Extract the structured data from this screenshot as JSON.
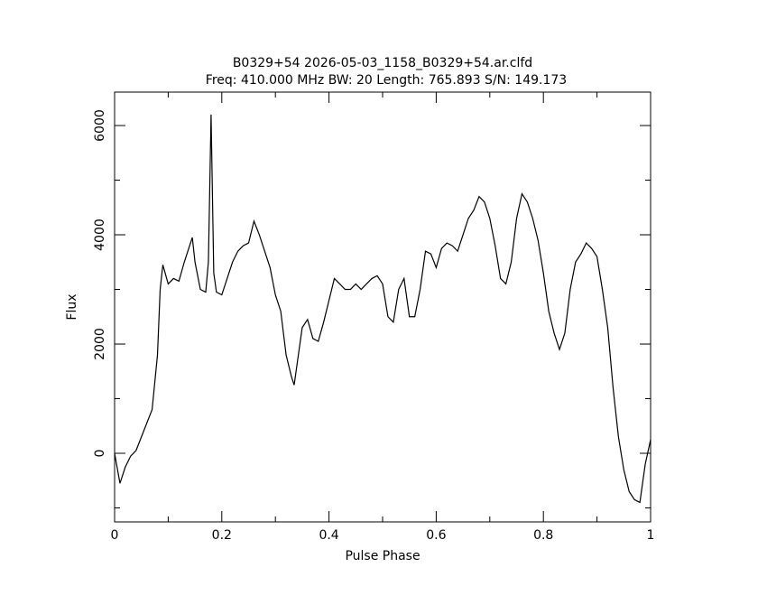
{
  "chart_data": {
    "type": "line",
    "title": "B0329+54 2026-05-03_1158_B0329+54.ar.clfd",
    "subtitle": "Freq: 410.000 MHz BW: 20 Length: 765.893 S/N: 149.173",
    "x_label": "Pulse Phase",
    "y_label": "Flux",
    "x": [
      0,
      0.01,
      0.02,
      0.03,
      0.04,
      0.05,
      0.06,
      0.07,
      0.08,
      0.085,
      0.09,
      0.1,
      0.11,
      0.12,
      0.13,
      0.14,
      0.145,
      0.15,
      0.16,
      0.17,
      0.175,
      0.18,
      0.185,
      0.19,
      0.2,
      0.21,
      0.22,
      0.23,
      0.24,
      0.25,
      0.26,
      0.27,
      0.28,
      0.29,
      0.3,
      0.31,
      0.32,
      0.33,
      0.335,
      0.34,
      0.35,
      0.36,
      0.37,
      0.38,
      0.39,
      0.4,
      0.41,
      0.42,
      0.43,
      0.44,
      0.45,
      0.46,
      0.47,
      0.48,
      0.49,
      0.5,
      0.51,
      0.52,
      0.53,
      0.54,
      0.55,
      0.56,
      0.57,
      0.58,
      0.59,
      0.6,
      0.61,
      0.62,
      0.63,
      0.64,
      0.65,
      0.66,
      0.67,
      0.68,
      0.69,
      0.7,
      0.71,
      0.72,
      0.73,
      0.74,
      0.75,
      0.76,
      0.77,
      0.78,
      0.79,
      0.8,
      0.81,
      0.82,
      0.83,
      0.84,
      0.85,
      0.86,
      0.87,
      0.88,
      0.89,
      0.9,
      0.91,
      0.92,
      0.93,
      0.94,
      0.95,
      0.96,
      0.97,
      0.98,
      0.99,
      1
    ],
    "series": [
      {
        "name": "Flux",
        "color": "#000000",
        "values": [
          0,
          -550,
          -250,
          -50,
          50,
          300,
          550,
          800,
          1800,
          3000,
          3450,
          3100,
          3200,
          3150,
          3500,
          3800,
          3950,
          3500,
          3000,
          2950,
          3500,
          6200,
          3300,
          2950,
          2900,
          3200,
          3500,
          3700,
          3800,
          3850,
          4250,
          4000,
          3700,
          3400,
          2900,
          2600,
          1800,
          1400,
          1250,
          1600,
          2300,
          2450,
          2100,
          2050,
          2400,
          2800,
          3200,
          3100,
          3000,
          3000,
          3100,
          3000,
          3100,
          3200,
          3250,
          3100,
          2500,
          2400,
          3000,
          3200,
          2500,
          2500,
          3000,
          3700,
          3650,
          3400,
          3750,
          3850,
          3800,
          3700,
          4000,
          4300,
          4450,
          4700,
          4600,
          4300,
          3800,
          3200,
          3100,
          3500,
          4300,
          4750,
          4600,
          4300,
          3900,
          3300,
          2600,
          2200,
          1900,
          2200,
          3000,
          3500,
          3650,
          3850,
          3750,
          3600,
          3000,
          2300,
          1200,
          300,
          -300,
          -700,
          -850,
          -900,
          -200,
          250
        ]
      }
    ],
    "xlim": [
      0,
      1
    ],
    "ylim": [
      -1256,
      6612
    ],
    "xticks": [
      0,
      0.2,
      0.4,
      0.6,
      0.8,
      1
    ],
    "yticks": [
      0,
      2000,
      4000,
      6000
    ]
  }
}
